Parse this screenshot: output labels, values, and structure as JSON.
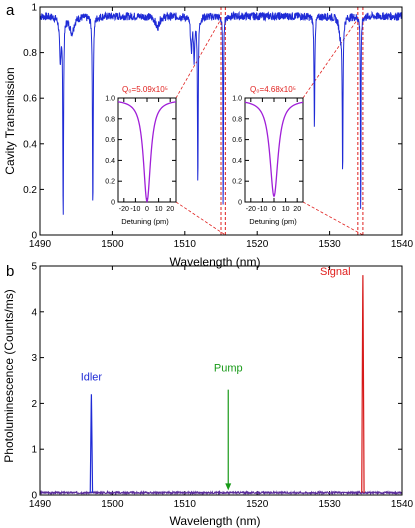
{
  "colors": {
    "blue": "#1f2bd6",
    "red": "#e0201e",
    "green": "#189a18",
    "purple": "#a01fd8",
    "signal_line": "#d71a1a",
    "pl_baseline": "#5a2d9a",
    "grid_frame": "#000000"
  },
  "chart_data": [
    {
      "panel_label": "a",
      "type": "line",
      "xlabel": "Wavelength (nm)",
      "ylabel": "Cavity Transmission",
      "xlim": [
        1490,
        1540
      ],
      "ylim": [
        0,
        1
      ],
      "xticks": [
        "1490",
        "1500",
        "1510",
        "1520",
        "1530",
        "1540"
      ],
      "yticks": [
        "0",
        "0.2",
        "0.4",
        "0.6",
        "0.8",
        "1"
      ],
      "grid": false,
      "baseline": 0.96,
      "dips": [
        {
          "x": 1492.8,
          "depth": 0.2,
          "width": 0.12
        },
        {
          "x": 1493.2,
          "depth": 0.88,
          "width": 0.06
        },
        {
          "x": 1494.4,
          "depth": 0.07,
          "width": 0.35
        },
        {
          "x": 1497.3,
          "depth": 0.87,
          "width": 0.06
        },
        {
          "x": 1510.9,
          "depth": 0.15,
          "width": 0.12
        },
        {
          "x": 1511.3,
          "depth": 0.18,
          "width": 0.1
        },
        {
          "x": 1511.8,
          "depth": 0.74,
          "width": 0.06
        },
        {
          "x": 1515.3,
          "depth": 0.95,
          "width": 0.04
        },
        {
          "x": 1527.9,
          "depth": 0.5,
          "width": 0.06
        },
        {
          "x": 1531.5,
          "depth": 0.08,
          "width": 0.25
        },
        {
          "x": 1531.8,
          "depth": 0.68,
          "width": 0.06
        },
        {
          "x": 1534.3,
          "depth": 0.95,
          "width": 0.04
        },
        {
          "x": 1506.2,
          "depth": 0.05,
          "width": 0.3
        }
      ],
      "zoom_marks": [
        1515.0,
        1515.6,
        1533.9,
        1534.6
      ],
      "insets": [
        {
          "title": "Q₀=5.09x10⁵",
          "xlabel": "Detuning (pm)",
          "xlim": [
            -25,
            25
          ],
          "ylim": [
            0,
            1
          ],
          "xticks": [
            "-20",
            "-10",
            "0",
            "10",
            "20"
          ],
          "yticks": [
            "0",
            "0.2",
            "0.4",
            "0.6",
            "0.8",
            "1.0"
          ],
          "lorentz": {
            "center": 0,
            "fwhm": 7.5,
            "depth": 0.98,
            "baseline": 0.985
          }
        },
        {
          "title": "Q₀=4.68x10⁵",
          "xlabel": "Detuning (pm)",
          "xlim": [
            -25,
            25
          ],
          "ylim": [
            0,
            1
          ],
          "xticks": [
            "-20",
            "-10",
            "0",
            "10",
            "20"
          ],
          "yticks": [
            "0",
            "0.2",
            "0.4",
            "0.6",
            "0.8",
            "1.0"
          ],
          "lorentz": {
            "center": 0,
            "fwhm": 8.5,
            "depth": 0.93,
            "baseline": 0.985
          }
        }
      ]
    },
    {
      "panel_label": "b",
      "type": "line",
      "xlabel": "Wavelength (nm)",
      "ylabel": "Photoluminescence (Counts/ms)",
      "xlim": [
        1490,
        1540
      ],
      "ylim": [
        0,
        5
      ],
      "xticks": [
        "1490",
        "1500",
        "1510",
        "1520",
        "1530",
        "1540"
      ],
      "yticks": [
        "0",
        "1",
        "2",
        "3",
        "4",
        "5"
      ],
      "grid": false,
      "baseline": 0.05,
      "peaks": [
        {
          "name": "Idler",
          "x": 1497.1,
          "y": 2.2
        },
        {
          "name": "Signal",
          "x": 1534.6,
          "y": 4.8
        }
      ],
      "annotations": [
        {
          "text": "Idler",
          "x": 1497.1,
          "y": 2.5
        },
        {
          "text": "Signal",
          "x": 1532.9,
          "y": 4.8
        },
        {
          "text": "Pump",
          "x": 1516.0,
          "y": 2.7
        }
      ],
      "pump_arrow": {
        "x": 1516.0,
        "y_from": 2.3,
        "y_to": 0.1
      }
    }
  ]
}
